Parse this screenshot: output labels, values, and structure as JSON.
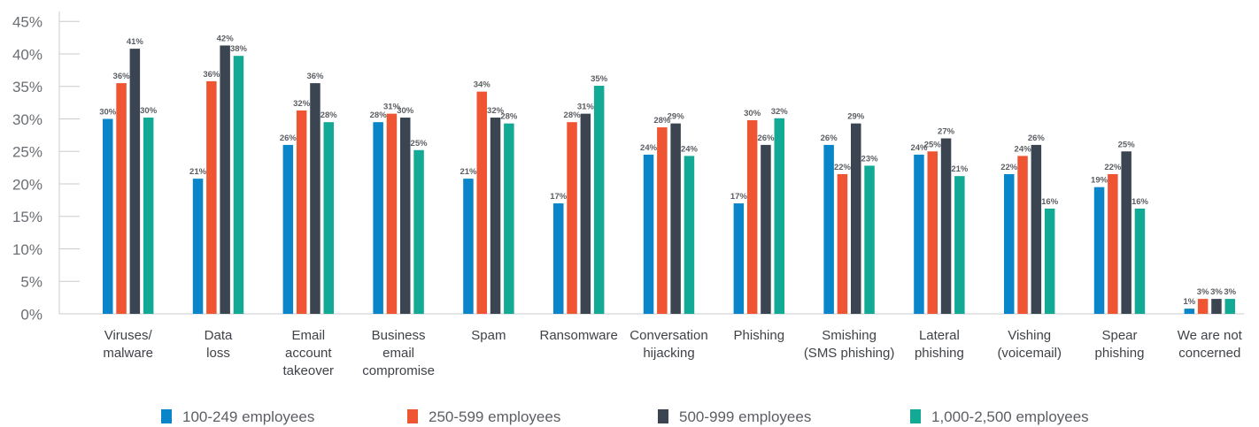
{
  "chart_data": {
    "type": "bar",
    "categories": [
      [
        "Viruses/",
        "malware"
      ],
      [
        "Data",
        "loss"
      ],
      [
        "Email",
        "account",
        "takeover"
      ],
      [
        "Business",
        "email",
        "compromise"
      ],
      [
        "Spam"
      ],
      [
        "Ransomware"
      ],
      [
        "Conversation",
        "hijacking"
      ],
      [
        "Phishing"
      ],
      [
        "Smishing",
        "(SMS phishing)"
      ],
      [
        "Lateral",
        "phishing"
      ],
      [
        "Vishing",
        "(voicemail)"
      ],
      [
        "Spear",
        "phishing"
      ],
      [
        "We are not",
        "concerned"
      ]
    ],
    "series": [
      {
        "name": "100-249 employees",
        "color": "#0a85c9",
        "values": [
          30,
          21,
          26,
          28,
          21,
          17,
          24,
          17,
          26,
          24,
          22,
          19,
          1
        ]
      },
      {
        "name": "250-599 employees",
        "color": "#ef5533",
        "values": [
          36,
          36,
          32,
          31,
          34,
          28,
          28,
          30,
          22,
          25,
          24,
          22,
          3
        ]
      },
      {
        "name": "500-999 employees",
        "color": "#3b4552",
        "values": [
          41,
          42,
          36,
          30,
          32,
          31,
          29,
          26,
          29,
          27,
          26,
          25,
          3
        ]
      },
      {
        "name": "1,000-2,500 employees",
        "color": "#12aa95",
        "values": [
          30,
          38,
          28,
          25,
          28,
          35,
          24,
          32,
          23,
          21,
          16,
          16,
          3
        ]
      }
    ],
    "bar_heights": [
      [
        30,
        20.8,
        26,
        29.5,
        20.8,
        17,
        24.5,
        17,
        26,
        24.5,
        21.5,
        19.5,
        0.8
      ],
      [
        35.5,
        35.8,
        31.3,
        30.8,
        34.2,
        29.5,
        28.7,
        29.8,
        21.5,
        25,
        24.3,
        21.5,
        2.3
      ],
      [
        40.8,
        41.3,
        35.5,
        30.2,
        30.2,
        30.8,
        29.3,
        26,
        29.3,
        27,
        26,
        25,
        2.3
      ],
      [
        30.2,
        39.7,
        29.5,
        25.2,
        29.3,
        35.1,
        24.3,
        30.1,
        22.8,
        21.2,
        16.2,
        16.2,
        2.3
      ]
    ],
    "y_ticks": [
      "0%",
      "5%",
      "10%",
      "15%",
      "20%",
      "25%",
      "30%",
      "35%",
      "40%",
      "45%"
    ],
    "ylim": [
      0,
      45
    ],
    "grid": false,
    "legend_position": "bottom"
  }
}
